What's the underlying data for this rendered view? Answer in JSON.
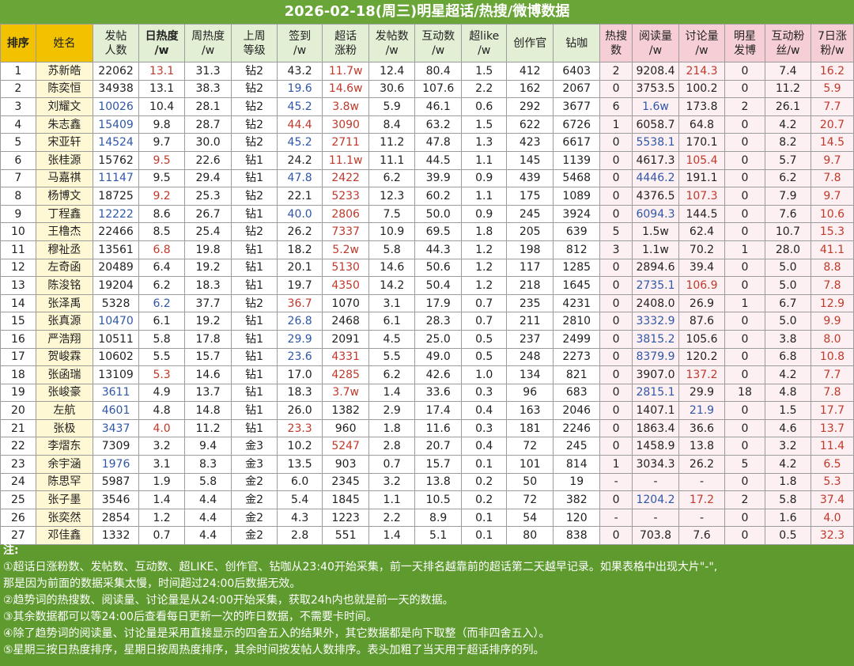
{
  "title": "2026-02-18(周三)明星超话/热搜/微博数据",
  "headers": [
    "排序",
    "姓名",
    "发帖\n人数",
    "日热度\n/w",
    "周热度\n/w",
    "上周\n等级",
    "签到\n/w",
    "超话\n涨粉",
    "发帖数\n/w",
    "互动数\n/w",
    "超like\n/w",
    "创作官",
    "钻咖",
    "热搜\n数",
    "阅读量\n/w",
    "讨论量\n/w",
    "明星\n发博",
    "互动粉\n丝/w",
    "7日涨\n粉/w"
  ],
  "rows": [
    [
      "1",
      "苏新皓",
      "22062",
      "13.1",
      "31.3",
      "钻2",
      "43.2",
      "11.7w",
      "12.4",
      "80.4",
      "1.5",
      "412",
      "6403",
      "2",
      "9208.4",
      "214.3",
      "0",
      "7.4",
      "16.2"
    ],
    [
      "2",
      "陈奕恒",
      "34938",
      "13.1",
      "38.3",
      "钻2",
      "19.6",
      "14.6w",
      "30.6",
      "107.6",
      "2.2",
      "162",
      "2067",
      "0",
      "3753.5",
      "100.2",
      "0",
      "11.2",
      "5.9"
    ],
    [
      "3",
      "刘耀文",
      "10026",
      "10.4",
      "28.1",
      "钻2",
      "45.2",
      "3.8w",
      "5.9",
      "46.1",
      "0.6",
      "292",
      "3677",
      "6",
      "1.6w",
      "173.8",
      "2",
      "26.1",
      "7.7"
    ],
    [
      "4",
      "朱志鑫",
      "15409",
      "9.8",
      "28.7",
      "钻2",
      "44.4",
      "3090",
      "8.4",
      "63.2",
      "1.5",
      "622",
      "6726",
      "1",
      "6058.7",
      "64.8",
      "0",
      "4.2",
      "20.7"
    ],
    [
      "5",
      "宋亚轩",
      "14524",
      "9.7",
      "30.0",
      "钻2",
      "45.2",
      "2711",
      "11.2",
      "47.8",
      "1.3",
      "423",
      "6617",
      "0",
      "5538.1",
      "170.1",
      "0",
      "8.2",
      "14.5"
    ],
    [
      "6",
      "张桂源",
      "15762",
      "9.5",
      "22.6",
      "钻1",
      "24.2",
      "11.1w",
      "11.1",
      "44.5",
      "1.1",
      "145",
      "1139",
      "0",
      "4617.3",
      "105.4",
      "0",
      "5.7",
      "9.7"
    ],
    [
      "7",
      "马嘉祺",
      "11147",
      "9.5",
      "29.4",
      "钻1",
      "47.8",
      "2422",
      "6.2",
      "39.9",
      "0.9",
      "439",
      "5468",
      "0",
      "4446.2",
      "191.1",
      "0",
      "6.2",
      "7.8"
    ],
    [
      "8",
      "杨博文",
      "18725",
      "9.2",
      "25.3",
      "钻2",
      "22.1",
      "5233",
      "12.3",
      "60.2",
      "1.1",
      "175",
      "1089",
      "0",
      "4376.5",
      "107.3",
      "0",
      "7.9",
      "9.7"
    ],
    [
      "9",
      "丁程鑫",
      "12222",
      "8.6",
      "26.7",
      "钻1",
      "40.0",
      "2806",
      "7.5",
      "50.0",
      "0.9",
      "245",
      "3924",
      "0",
      "6094.3",
      "144.5",
      "0",
      "7.6",
      "10.6"
    ],
    [
      "10",
      "王橹杰",
      "22466",
      "8.5",
      "25.4",
      "钻2",
      "26.2",
      "7337",
      "10.9",
      "69.5",
      "1.8",
      "205",
      "639",
      "5",
      "1.5w",
      "62.4",
      "0",
      "10.7",
      "15.3"
    ],
    [
      "11",
      "穆祉丞",
      "13561",
      "6.8",
      "19.8",
      "钻1",
      "18.2",
      "5.2w",
      "5.8",
      "44.3",
      "1.2",
      "198",
      "812",
      "3",
      "1.1w",
      "70.2",
      "1",
      "28.0",
      "41.1"
    ],
    [
      "12",
      "左奇函",
      "20489",
      "6.4",
      "19.2",
      "钻1",
      "20.1",
      "5130",
      "14.6",
      "50.6",
      "1.2",
      "117",
      "1285",
      "0",
      "2894.6",
      "39.4",
      "0",
      "5.0",
      "8.8"
    ],
    [
      "13",
      "陈浚铭",
      "19204",
      "6.2",
      "18.3",
      "钻1",
      "19.7",
      "4350",
      "14.2",
      "50.4",
      "1.2",
      "218",
      "1645",
      "0",
      "2735.1",
      "106.9",
      "0",
      "5.0",
      "7.8"
    ],
    [
      "14",
      "张泽禹",
      "5328",
      "6.2",
      "37.7",
      "钻2",
      "36.7",
      "1070",
      "3.1",
      "17.9",
      "0.7",
      "235",
      "4231",
      "0",
      "2408.0",
      "26.9",
      "1",
      "6.7",
      "12.9"
    ],
    [
      "15",
      "张真源",
      "10470",
      "6.1",
      "19.2",
      "钻1",
      "26.8",
      "2468",
      "6.1",
      "28.3",
      "0.7",
      "211",
      "2810",
      "0",
      "3332.9",
      "87.6",
      "0",
      "5.0",
      "9.9"
    ],
    [
      "16",
      "严浩翔",
      "10511",
      "5.8",
      "17.8",
      "钻1",
      "29.9",
      "2091",
      "4.5",
      "25.0",
      "0.5",
      "237",
      "2499",
      "0",
      "3815.2",
      "105.6",
      "0",
      "3.8",
      "8.0"
    ],
    [
      "17",
      "贺峻霖",
      "10602",
      "5.5",
      "15.7",
      "钻1",
      "23.6",
      "4331",
      "5.5",
      "49.0",
      "0.5",
      "248",
      "2273",
      "0",
      "8379.9",
      "120.2",
      "0",
      "6.8",
      "10.8"
    ],
    [
      "18",
      "张函瑞",
      "13109",
      "5.3",
      "14.6",
      "钻1",
      "17.0",
      "4285",
      "6.2",
      "42.6",
      "1.0",
      "134",
      "821",
      "0",
      "3907.0",
      "137.2",
      "0",
      "4.2",
      "7.7"
    ],
    [
      "19",
      "张峻豪",
      "3611",
      "4.9",
      "13.7",
      "钻1",
      "18.3",
      "3.7w",
      "1.4",
      "33.6",
      "0.3",
      "96",
      "683",
      "0",
      "2815.1",
      "29.9",
      "18",
      "4.8",
      "7.8"
    ],
    [
      "20",
      "左航",
      "4601",
      "4.8",
      "14.8",
      "钻1",
      "26.0",
      "1382",
      "2.9",
      "17.4",
      "0.4",
      "163",
      "2046",
      "0",
      "1407.1",
      "21.9",
      "0",
      "1.5",
      "17.7"
    ],
    [
      "21",
      "张极",
      "3437",
      "4.0",
      "11.2",
      "钻1",
      "23.3",
      "960",
      "1.8",
      "11.6",
      "0.3",
      "181",
      "2246",
      "0",
      "1863.4",
      "36.6",
      "0",
      "4.6",
      "13.7"
    ],
    [
      "22",
      "李熠东",
      "7309",
      "3.2",
      "9.4",
      "金3",
      "10.2",
      "5247",
      "2.8",
      "20.7",
      "0.4",
      "72",
      "245",
      "0",
      "1458.9",
      "13.8",
      "0",
      "3.2",
      "11.4"
    ],
    [
      "23",
      "余宇涵",
      "1976",
      "3.1",
      "8.3",
      "金3",
      "13.5",
      "903",
      "0.7",
      "15.7",
      "0.1",
      "101",
      "814",
      "1",
      "3034.3",
      "26.2",
      "5",
      "4.2",
      "6.5"
    ],
    [
      "24",
      "陈思罕",
      "5987",
      "1.9",
      "5.8",
      "金2",
      "6.0",
      "2345",
      "3.2",
      "13.8",
      "0.2",
      "50",
      "19",
      "-",
      "-",
      "-",
      "0",
      "1.8",
      "5.3"
    ],
    [
      "25",
      "张子墨",
      "3546",
      "1.4",
      "4.4",
      "金2",
      "5.4",
      "1845",
      "1.1",
      "10.5",
      "0.2",
      "72",
      "382",
      "0",
      "1204.2",
      "17.2",
      "2",
      "5.8",
      "37.4"
    ],
    [
      "26",
      "张奕然",
      "2854",
      "1.2",
      "4.4",
      "金2",
      "4.3",
      "1223",
      "2.2",
      "8.9",
      "0.1",
      "54",
      "120",
      "-",
      "-",
      "-",
      "0",
      "1.6",
      "4.0"
    ],
    [
      "27",
      "邓佳鑫",
      "1332",
      "0.7",
      "4.4",
      "金2",
      "2.8",
      "551",
      "1.4",
      "5.1",
      "0.1",
      "80",
      "838",
      "0",
      "703.8",
      "7.6",
      "0",
      "0.5",
      "32.3"
    ]
  ],
  "cell_colors": {
    "0": {
      "3": "r",
      "7": "r",
      "15": "r",
      "18": "r"
    },
    "1": {
      "6": "b",
      "7": "r",
      "18": "r"
    },
    "2": {
      "2": "b",
      "6": "b",
      "7": "r",
      "14": "b",
      "18": "r"
    },
    "3": {
      "2": "b",
      "6": "r",
      "7": "r",
      "18": "r"
    },
    "4": {
      "2": "b",
      "6": "b",
      "7": "r",
      "14": "b",
      "18": "r"
    },
    "5": {
      "3": "r",
      "7": "r",
      "15": "r",
      "18": "r"
    },
    "6": {
      "2": "b",
      "6": "b",
      "7": "r",
      "14": "b",
      "18": "r"
    },
    "7": {
      "3": "r",
      "7": "r",
      "15": "r",
      "18": "r"
    },
    "8": {
      "2": "b",
      "6": "b",
      "7": "r",
      "14": "b",
      "18": "r"
    },
    "9": {
      "7": "r",
      "18": "r"
    },
    "10": {
      "3": "r",
      "7": "r",
      "18": "r"
    },
    "11": {
      "7": "r",
      "18": "r"
    },
    "12": {
      "7": "r",
      "14": "b",
      "15": "r",
      "18": "r"
    },
    "13": {
      "3": "b",
      "6": "r",
      "18": "r"
    },
    "14": {
      "2": "b",
      "6": "b",
      "14": "b",
      "18": "r"
    },
    "15": {
      "6": "b",
      "14": "b",
      "18": "r"
    },
    "16": {
      "6": "b",
      "7": "r",
      "14": "b",
      "18": "r"
    },
    "17": {
      "3": "r",
      "7": "r",
      "15": "r",
      "18": "r"
    },
    "18": {
      "2": "b",
      "7": "r",
      "14": "b",
      "18": "r"
    },
    "19": {
      "2": "b",
      "15": "b",
      "18": "r"
    },
    "20": {
      "2": "b",
      "3": "r",
      "6": "r",
      "18": "r"
    },
    "21": {
      "7": "r",
      "18": "r"
    },
    "22": {
      "2": "b",
      "18": "r"
    },
    "23": {
      "18": "r"
    },
    "24": {
      "14": "b",
      "15": "r",
      "18": "r"
    },
    "25": {
      "18": "r"
    },
    "26": {
      "18": "r"
    }
  },
  "notes": {
    "heading": "注:",
    "lines": [
      "①超话日涨粉数、发帖数、互动数、超LIKE、创作官、钻咖从23:40开始采集，前一天排名越靠前的超话第二天越早记录。如果表格中出现大片\"-\",",
      "那是因为前面的数据采集太慢，时间超过24:00后数据无效。",
      "②趋势词的热搜数、阅读量、讨论量是从24:00开始采集，获取24h内也就是前一天的数据。",
      "③其余数据都可以等24:00后查看每日更新一次的昨日数据，不需要卡时间。",
      "④除了趋势词的阅读量、讨论量是采用直接显示的四舍五入的结果外，其它数据都是向下取整（而非四舍五入）。",
      "⑤星期三按日热度排序，星期日按周热度排序，其余时间按发帖人数排序。表头加粗了当天用于超话排序的列。"
    ]
  }
}
